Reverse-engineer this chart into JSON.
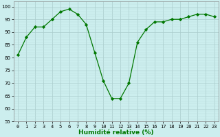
{
  "x": [
    0,
    1,
    2,
    3,
    4,
    5,
    6,
    7,
    8,
    9,
    10,
    11,
    12,
    13,
    14,
    15,
    16,
    17,
    18,
    19,
    20,
    21,
    22,
    23
  ],
  "y": [
    81,
    88,
    92,
    92,
    95,
    98,
    99,
    97,
    93,
    82,
    71,
    64,
    64,
    70,
    86,
    91,
    94,
    94,
    95,
    95,
    96,
    97,
    97,
    96
  ],
  "line_color": "#007700",
  "marker": "D",
  "marker_size": 2.2,
  "bg_color": "#cceeee",
  "grid_color_major": "#aacccc",
  "grid_color_minor": "#bbdddd",
  "xlabel": "Humidité relative (%)",
  "xlabel_color": "#007700",
  "xlabel_fontsize": 6.5,
  "tick_fontsize": 5.0,
  "ylabel_ticks": [
    55,
    60,
    65,
    70,
    75,
    80,
    85,
    90,
    95,
    100
  ],
  "xlim": [
    -0.5,
    23.5
  ],
  "ylim": [
    55,
    102
  ]
}
